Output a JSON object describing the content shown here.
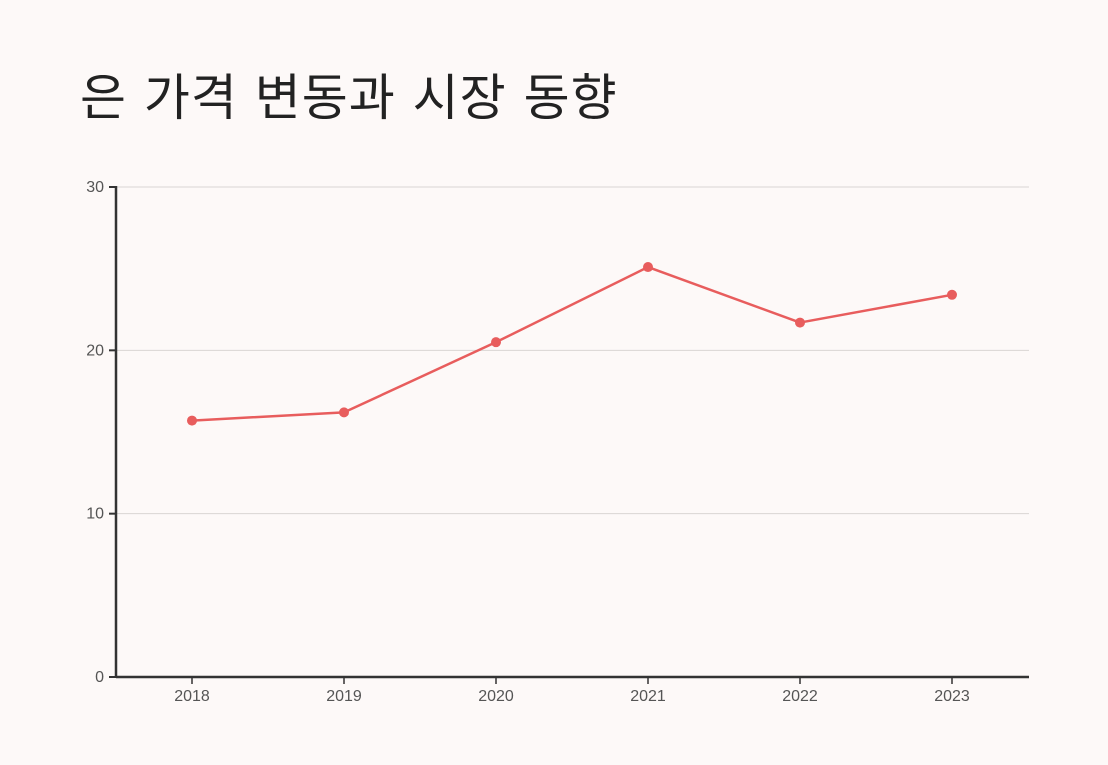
{
  "chart_data": {
    "type": "line",
    "title": "은 가격 변동과 시장 동향",
    "xlabel": "",
    "ylabel": "",
    "categories": [
      "2018",
      "2019",
      "2020",
      "2021",
      "2022",
      "2023"
    ],
    "series": [
      {
        "values": [
          15.7,
          16.2,
          20.5,
          25.1,
          21.7,
          23.4
        ]
      }
    ],
    "ylim": [
      0,
      30
    ],
    "yticks": [
      0,
      10,
      20,
      30
    ],
    "grid": true,
    "colors": {
      "line": "#e85d5d",
      "marker": "#e85d5d",
      "grid": "#d9d5d3",
      "axis": "#333333",
      "background": "#fdf9f8",
      "title": "#222222"
    }
  }
}
